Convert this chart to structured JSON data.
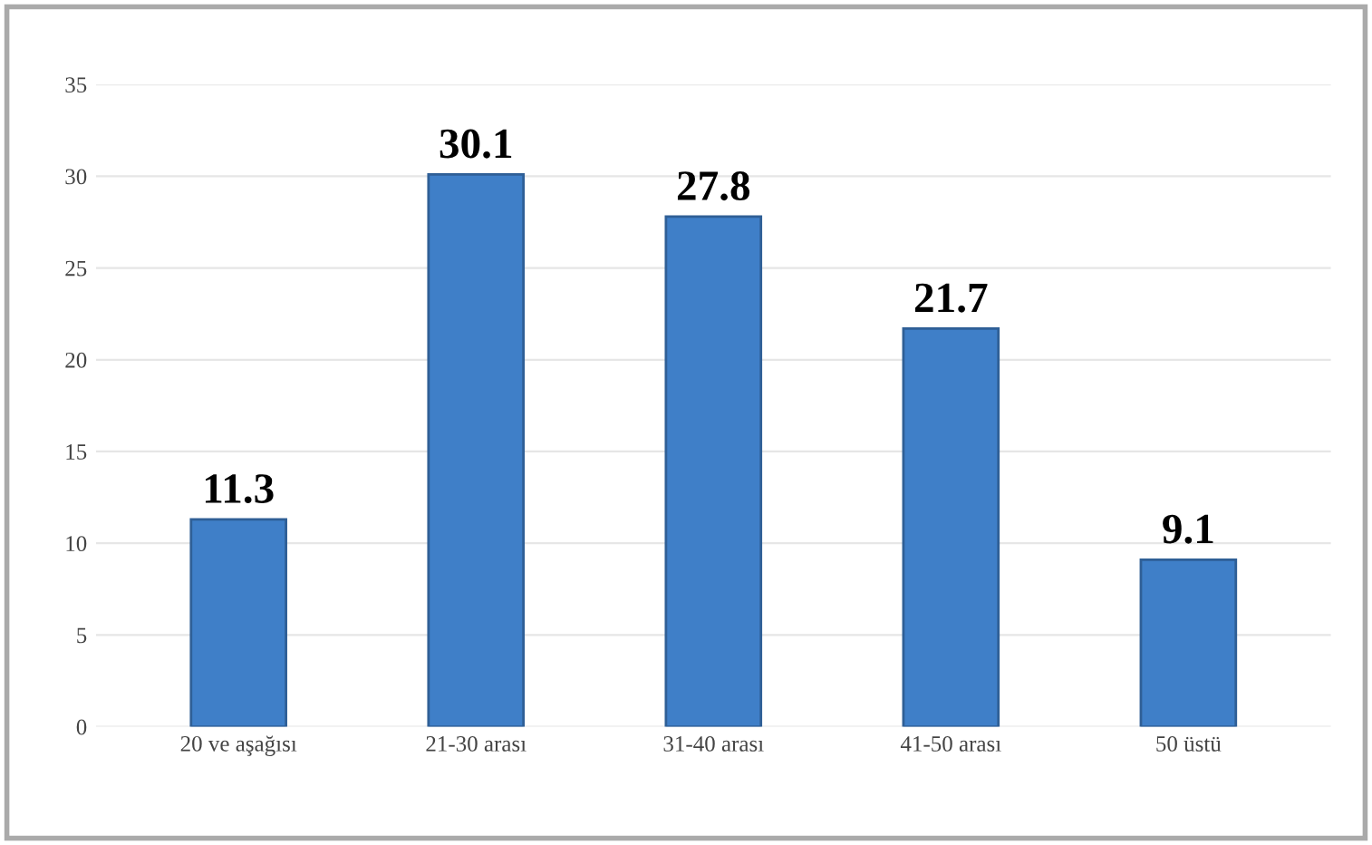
{
  "chart_data": {
    "type": "bar",
    "categories": [
      "20 ve aşağısı",
      "21-30 arası",
      "31-40 arası",
      "41-50 arası",
      "50 üstü"
    ],
    "values": [
      11.3,
      30.1,
      27.8,
      21.7,
      9.1
    ],
    "color": "#3f7fc8",
    "ylim": [
      0,
      35
    ],
    "yticks": [
      0,
      5,
      10,
      15,
      20,
      25,
      30,
      35
    ],
    "grid": "y",
    "data_labels": true
  }
}
